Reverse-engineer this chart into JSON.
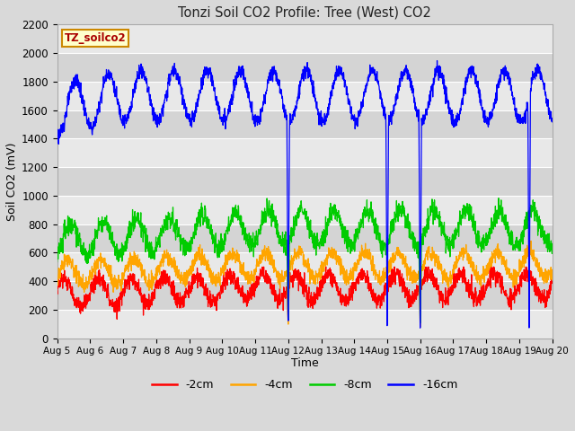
{
  "title": "Tonzi Soil CO2 Profile: Tree (West) CO2",
  "xlabel": "Time",
  "ylabel": "Soil CO2 (mV)",
  "legend_label": "TZ_soilco2",
  "ylim": [
    0,
    2200
  ],
  "x_tick_labels": [
    "Aug 5",
    "Aug 6",
    "Aug 7",
    "Aug 8",
    "Aug 9",
    "Aug 10",
    "Aug 11",
    "Aug 12",
    "Aug 13",
    "Aug 14",
    "Aug 15",
    "Aug 16",
    "Aug 17",
    "Aug 18",
    "Aug 19",
    "Aug 20"
  ],
  "series_colors": {
    "-2cm": "#ff0000",
    "-4cm": "#ffa500",
    "-8cm": "#00cc00",
    "-16cm": "#0000ff"
  },
  "bg_color": "#d9d9d9",
  "plot_bg_light": "#e8e8e8",
  "plot_bg_dark": "#d4d4d4",
  "grid_color": "#ffffff",
  "legend_box_color": "#ffffcc",
  "legend_box_edge": "#cc8800"
}
